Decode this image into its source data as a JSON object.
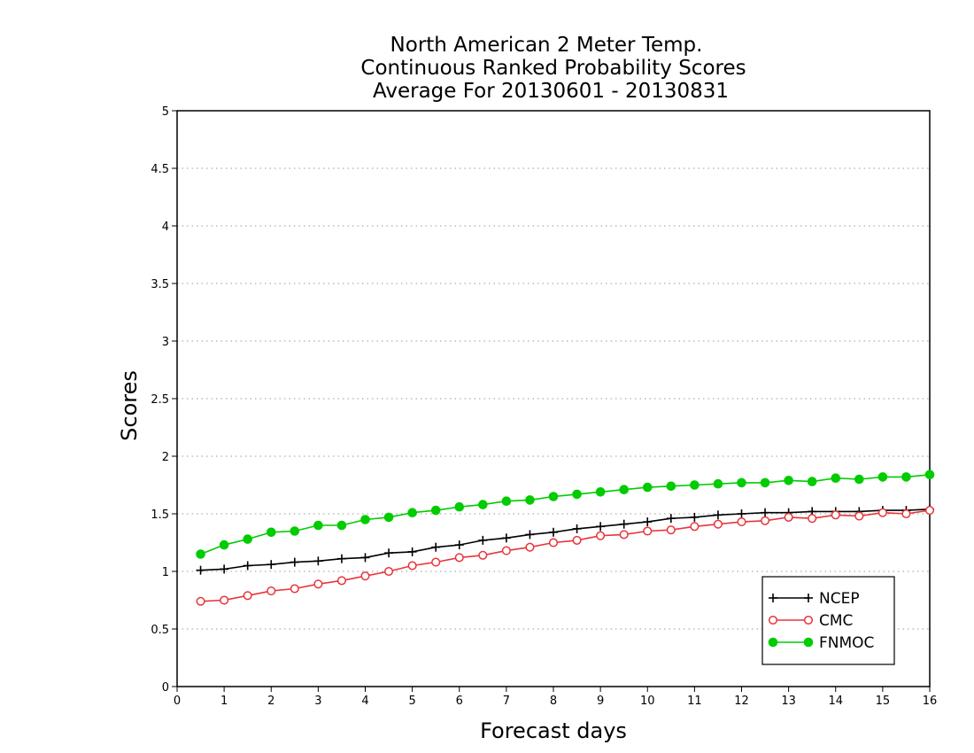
{
  "chart_data": {
    "type": "line",
    "title": [
      "North American 2 Meter Temp.",
      "Continuous Ranked Probability Scores",
      "Average For 20130601 - 20130831"
    ],
    "xlabel": "Forecast days",
    "ylabel": "Scores",
    "xlim": [
      0,
      16
    ],
    "ylim": [
      0,
      5
    ],
    "x_ticks": [
      "0",
      "1",
      "2",
      "3",
      "4",
      "5",
      "6",
      "7",
      "8",
      "9",
      "10",
      "11",
      "12",
      "13",
      "14",
      "15",
      "16"
    ],
    "y_ticks": [
      "0",
      "0.5",
      "1",
      "1.5",
      "2",
      "2.5",
      "3",
      "3.5",
      "4",
      "4.5",
      "5"
    ],
    "grid": "horizontal dotted",
    "legend_position": "bottom-right",
    "x": [
      0.5,
      1,
      1.5,
      2,
      2.5,
      3,
      3.5,
      4,
      4.5,
      5,
      5.5,
      6,
      6.5,
      7,
      7.5,
      8,
      8.5,
      9,
      9.5,
      10,
      10.5,
      11,
      11.5,
      12,
      12.5,
      13,
      13.5,
      14,
      14.5,
      15,
      15.5,
      16
    ],
    "series": [
      {
        "name": "NCEP",
        "color": "#000000",
        "marker": "plus",
        "values": [
          1.01,
          1.02,
          1.05,
          1.06,
          1.08,
          1.09,
          1.11,
          1.12,
          1.16,
          1.17,
          1.21,
          1.23,
          1.27,
          1.29,
          1.32,
          1.34,
          1.37,
          1.39,
          1.41,
          1.43,
          1.46,
          1.47,
          1.49,
          1.5,
          1.51,
          1.51,
          1.52,
          1.52,
          1.52,
          1.53,
          1.53,
          1.54
        ]
      },
      {
        "name": "CMC",
        "color": "#e8353a",
        "marker": "open-circle",
        "values": [
          0.74,
          0.75,
          0.79,
          0.83,
          0.85,
          0.89,
          0.92,
          0.96,
          1.0,
          1.05,
          1.08,
          1.12,
          1.14,
          1.18,
          1.21,
          1.25,
          1.27,
          1.31,
          1.32,
          1.35,
          1.36,
          1.39,
          1.41,
          1.43,
          1.44,
          1.47,
          1.46,
          1.49,
          1.48,
          1.51,
          1.5,
          1.53
        ]
      },
      {
        "name": "FNMOC",
        "color": "#00cc00",
        "marker": "filled-circle",
        "values": [
          1.15,
          1.23,
          1.28,
          1.34,
          1.35,
          1.4,
          1.4,
          1.45,
          1.47,
          1.51,
          1.53,
          1.56,
          1.58,
          1.61,
          1.62,
          1.65,
          1.67,
          1.69,
          1.71,
          1.73,
          1.74,
          1.75,
          1.76,
          1.77,
          1.77,
          1.79,
          1.78,
          1.81,
          1.8,
          1.82,
          1.82,
          1.84
        ]
      }
    ]
  }
}
